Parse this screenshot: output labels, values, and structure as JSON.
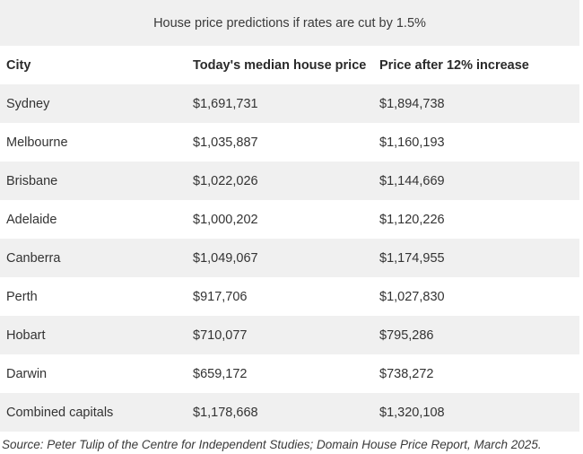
{
  "table": {
    "caption": "House price predictions if rates are cut by 1.5%",
    "headers": [
      "City",
      "Today's median house price",
      "Price after 12% increase"
    ],
    "rows": [
      [
        "Sydney",
        "$1,691,731",
        "$1,894,738"
      ],
      [
        "Melbourne",
        "$1,035,887",
        "$1,160,193"
      ],
      [
        "Brisbane",
        "$1,022,026",
        "$1,144,669"
      ],
      [
        "Adelaide",
        "$1,000,202",
        "$1,120,226"
      ],
      [
        "Canberra",
        "$1,049,067",
        "$1,174,955"
      ],
      [
        "Perth",
        "$917,706",
        "$1,027,830"
      ],
      [
        "Hobart",
        "$710,077",
        "$795,286"
      ],
      [
        "Darwin",
        "$659,172",
        "$738,272"
      ],
      [
        "Combined capitals",
        "$1,178,668",
        "$1,320,108"
      ]
    ]
  },
  "source": "Source: Peter Tulip of the Centre for Independent Studies; Domain House Price Report, March 2025."
}
